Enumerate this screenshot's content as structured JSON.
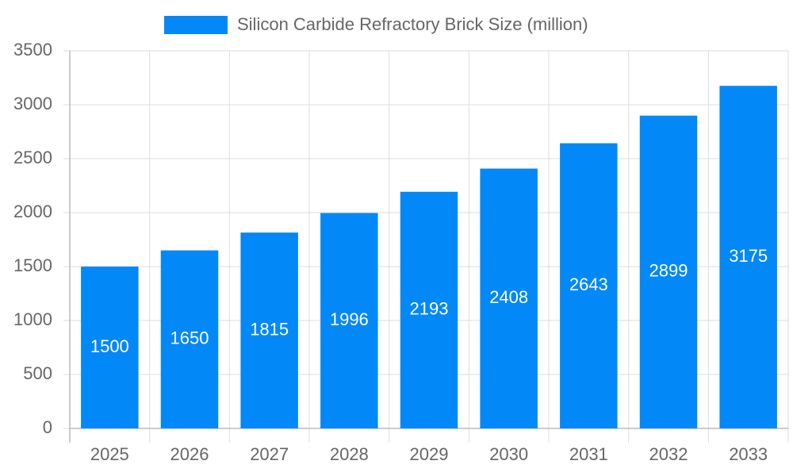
{
  "chart_data": {
    "type": "bar",
    "categories": [
      "2025",
      "2026",
      "2027",
      "2028",
      "2029",
      "2030",
      "2031",
      "2032",
      "2033"
    ],
    "series": [
      {
        "name": "Silicon Carbide Refractory Brick Size (million)",
        "color": "#0388f8",
        "values": [
          1500,
          1650,
          1815,
          1996,
          2193,
          2408,
          2643,
          2899,
          3175
        ]
      }
    ],
    "ylim": [
      0,
      3500
    ],
    "yticks": [
      0,
      500,
      1000,
      1500,
      2000,
      2500,
      3000,
      3500
    ],
    "grid": true,
    "legend": "top"
  }
}
